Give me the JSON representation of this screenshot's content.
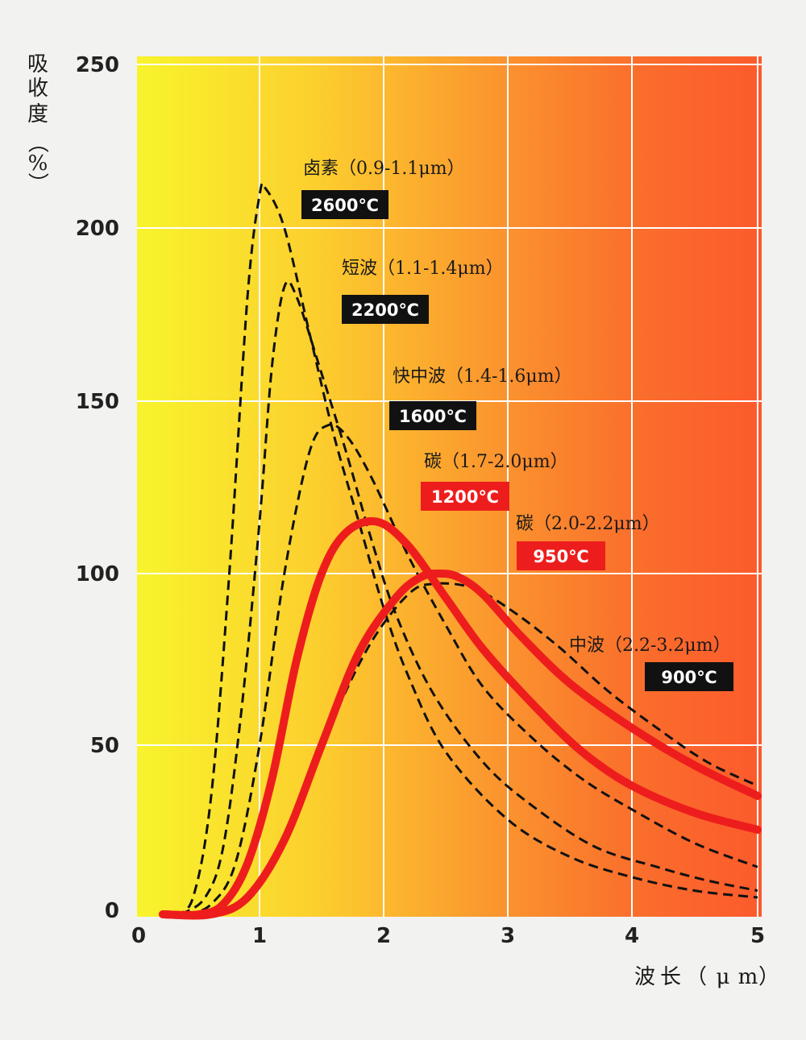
{
  "chart_data": {
    "type": "line",
    "ylabel": "吸收度（%）",
    "ylabel_chars": [
      "吸",
      "收",
      "度",
      "（",
      "%",
      "）"
    ],
    "xlabel": "波长（μm）",
    "xlabel_chars": [
      "波",
      "长",
      "（",
      "μ",
      "m",
      "）"
    ],
    "xlim": [
      0,
      5
    ],
    "ylim": [
      0,
      250
    ],
    "xticks": [
      "0",
      "1",
      "2",
      "3",
      "4",
      "5"
    ],
    "yticks": [
      "0",
      "50",
      "100",
      "150",
      "200",
      "250"
    ],
    "grid": true,
    "background": "horizontal gradient yellow to red-orange",
    "colors": {
      "dashed": "#111111",
      "solid": "#ee1d1d",
      "badge_dark": "#111111",
      "badge_red": "#ee1d1d"
    },
    "series": [
      {
        "name": "卤素（0.9-1.1μm）",
        "temperature": "2600℃",
        "style": "dashed",
        "points": [
          [
            0.3,
            0
          ],
          [
            0.45,
            5
          ],
          [
            0.6,
            35
          ],
          [
            0.75,
            100
          ],
          [
            0.9,
            180
          ],
          [
            1.0,
            210
          ],
          [
            1.05,
            212
          ],
          [
            1.2,
            200
          ],
          [
            1.4,
            170
          ],
          [
            1.6,
            140
          ],
          [
            1.8,
            115
          ],
          [
            2.0,
            90
          ],
          [
            2.2,
            70
          ],
          [
            2.5,
            48
          ],
          [
            3.0,
            28
          ],
          [
            3.5,
            17
          ],
          [
            4.0,
            11
          ],
          [
            4.5,
            7
          ],
          [
            5.0,
            5
          ]
        ]
      },
      {
        "name": "短波（1.1-1.4μm）",
        "temperature": "2200℃",
        "style": "dashed",
        "points": [
          [
            0.35,
            0
          ],
          [
            0.55,
            5
          ],
          [
            0.7,
            20
          ],
          [
            0.85,
            60
          ],
          [
            1.0,
            115
          ],
          [
            1.1,
            160
          ],
          [
            1.2,
            183
          ],
          [
            1.3,
            180
          ],
          [
            1.5,
            158
          ],
          [
            1.7,
            135
          ],
          [
            1.9,
            110
          ],
          [
            2.1,
            88
          ],
          [
            2.4,
            65
          ],
          [
            2.8,
            45
          ],
          [
            3.2,
            32
          ],
          [
            3.7,
            20
          ],
          [
            4.2,
            14
          ],
          [
            4.6,
            10
          ],
          [
            5.0,
            7
          ]
        ]
      },
      {
        "name": "快中波（1.4-1.6μm）",
        "temperature": "1600℃",
        "style": "dashed",
        "points": [
          [
            0.4,
            0
          ],
          [
            0.6,
            3
          ],
          [
            0.8,
            15
          ],
          [
            1.0,
            50
          ],
          [
            1.2,
            100
          ],
          [
            1.4,
            135
          ],
          [
            1.55,
            143
          ],
          [
            1.7,
            140
          ],
          [
            1.9,
            128
          ],
          [
            2.2,
            105
          ],
          [
            2.5,
            85
          ],
          [
            2.8,
            67
          ],
          [
            3.2,
            52
          ],
          [
            3.6,
            40
          ],
          [
            4.0,
            31
          ],
          [
            4.5,
            21
          ],
          [
            5.0,
            14
          ]
        ]
      },
      {
        "name": "碳（1.7-2.0μm）",
        "temperature": "1200℃",
        "style": "solid",
        "points": [
          [
            0.2,
            0
          ],
          [
            0.5,
            0
          ],
          [
            0.7,
            3
          ],
          [
            0.9,
            15
          ],
          [
            1.1,
            40
          ],
          [
            1.3,
            75
          ],
          [
            1.5,
            100
          ],
          [
            1.7,
            112
          ],
          [
            1.95,
            115
          ],
          [
            2.2,
            108
          ],
          [
            2.5,
            93
          ],
          [
            2.8,
            78
          ],
          [
            3.2,
            62
          ],
          [
            3.6,
            48
          ],
          [
            4.0,
            38
          ],
          [
            4.5,
            30
          ],
          [
            5.0,
            25
          ]
        ]
      },
      {
        "name": "碳（2.0-2.2μm）",
        "temperature": "950℃",
        "style": "solid",
        "points": [
          [
            0.2,
            0
          ],
          [
            0.6,
            0
          ],
          [
            0.9,
            5
          ],
          [
            1.2,
            22
          ],
          [
            1.5,
            50
          ],
          [
            1.8,
            77
          ],
          [
            2.1,
            93
          ],
          [
            2.3,
            99
          ],
          [
            2.45,
            100
          ],
          [
            2.6,
            99
          ],
          [
            2.8,
            94
          ],
          [
            3.1,
            82
          ],
          [
            3.5,
            68
          ],
          [
            4.0,
            55
          ],
          [
            4.5,
            44
          ],
          [
            5.0,
            35
          ]
        ]
      },
      {
        "name": "中波（2.2-3.2μm）",
        "temperature": "900℃",
        "style": "dashed",
        "points": [
          [
            0.3,
            0
          ],
          [
            0.7,
            0
          ],
          [
            1.0,
            8
          ],
          [
            1.3,
            30
          ],
          [
            1.6,
            58
          ],
          [
            1.9,
            80
          ],
          [
            2.2,
            94
          ],
          [
            2.4,
            97
          ],
          [
            2.7,
            96
          ],
          [
            3.0,
            90
          ],
          [
            3.4,
            79
          ],
          [
            3.8,
            66
          ],
          [
            4.2,
            55
          ],
          [
            4.6,
            45
          ],
          [
            5.0,
            38
          ]
        ]
      }
    ]
  }
}
